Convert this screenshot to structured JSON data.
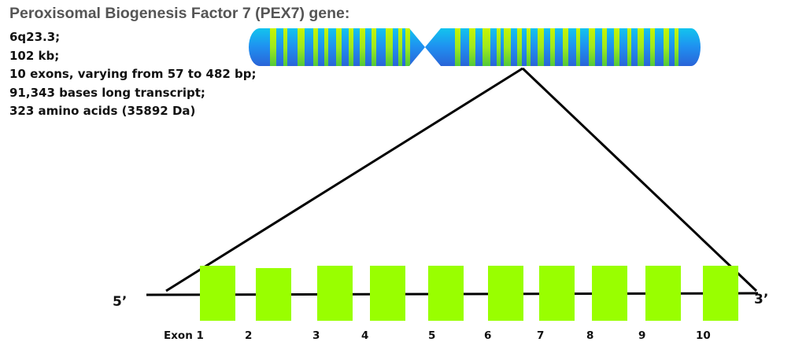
{
  "title": "Peroxisomal Biogenesis Factor 7 (PEX7) gene:",
  "facts": [
    "6q23.3;",
    "102 kb;",
    "10 exons, varying from 57 to 482 bp;",
    "91,343 bases long transcript;",
    "323 amino acids (35892 Da)"
  ],
  "ends": {
    "five_prime": "5’",
    "three_prime": "3’"
  },
  "exons": [
    "Exon 1",
    "2",
    "3",
    "4",
    "5",
    "6",
    "7",
    "8",
    "9",
    "10"
  ],
  "colors": {
    "exon": "#99ff00",
    "chromosome_base": "#1f8ff0",
    "chromosome_band": "#aaf21a",
    "line": "#000000"
  }
}
